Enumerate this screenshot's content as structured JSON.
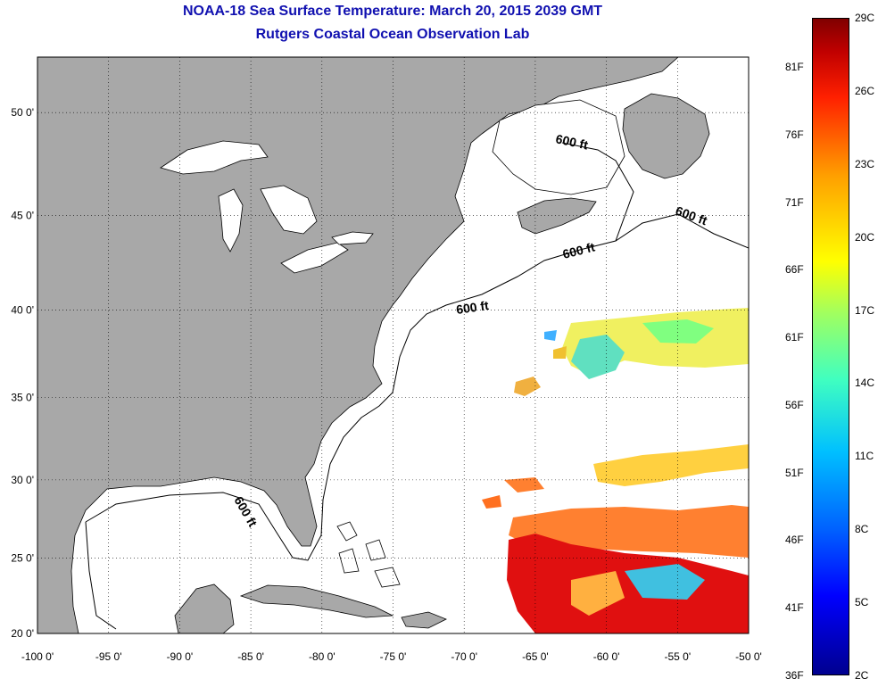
{
  "title": {
    "line1": "NOAA-18 Sea Surface Temperature:  March 20, 2015 2039 GMT",
    "line2": "Rutgers Coastal Ocean Observation Lab"
  },
  "map": {
    "lon_range": [
      -100,
      -50
    ],
    "lat_range": [
      20,
      52.5
    ],
    "lon_ticks": [
      "-100 0'",
      "-95 0'",
      "-90 0'",
      "-85 0'",
      "-80 0'",
      "-75 0'",
      "-70 0'",
      "-65 0'",
      "-60 0'",
      "-55 0'",
      "-50 0'"
    ],
    "lat_ticks": [
      "50 0'",
      "45 0'",
      "40 0'",
      "35 0'",
      "30 0'",
      "25 0'",
      "20 0'"
    ],
    "grid": "dotted",
    "land_color": "#a8a8a8",
    "contour_label": "600 ft"
  },
  "colorbar": {
    "celsius_labels": [
      "29C",
      "26C",
      "23C",
      "20C",
      "17C",
      "14C",
      "11C",
      "8C",
      "5C",
      "2C"
    ],
    "fahrenheit_labels": [
      "81F",
      "76F",
      "71F",
      "66F",
      "61F",
      "56F",
      "51F",
      "46F",
      "41F",
      "36F"
    ],
    "min_color": "#00008f",
    "max_color": "#800000"
  }
}
